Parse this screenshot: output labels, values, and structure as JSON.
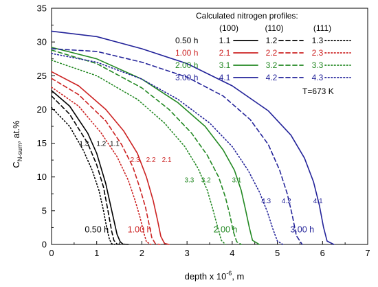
{
  "chart_data": {
    "type": "line",
    "xlabel": "depth x 10",
    "xlabel_sup": "-6",
    "xlabel_unit": ", m",
    "ylabel": "C",
    "ylabel_sub": "N-sum",
    "ylabel_unit": ", at.%",
    "xlim": [
      0,
      7
    ],
    "ylim": [
      0,
      35
    ],
    "xticks": [
      "0",
      "1",
      "2",
      "3",
      "4",
      "5",
      "6",
      "7"
    ],
    "yticks": [
      "0",
      "5",
      "10",
      "15",
      "20",
      "25",
      "30",
      "35"
    ],
    "grid": false,
    "legend": {
      "title": "Calculated nitrogen profiles:",
      "columns": [
        "(100)",
        "(110)",
        "(111)"
      ],
      "temperature": "T=673 K",
      "rows": [
        {
          "time": "0.50 h",
          "color": "#000000",
          "ids": [
            "1.1",
            "1.2",
            "1.3"
          ]
        },
        {
          "time": "1.00 h",
          "color": "#cc2222",
          "ids": [
            "2.1",
            "2.2",
            "2.3"
          ]
        },
        {
          "time": "2.00 h",
          "color": "#228822",
          "ids": [
            "3.1",
            "3.2",
            "3.3"
          ]
        },
        {
          "time": "3.00 h",
          "color": "#222299",
          "ids": [
            "4.1",
            "4.2",
            "4.3"
          ]
        }
      ]
    },
    "series": [
      {
        "name": "1.1",
        "orientation": "(100)",
        "style": "solid",
        "color": "#000000",
        "x": [
          0,
          0.4,
          0.8,
          1.0,
          1.2,
          1.35,
          1.45,
          1.52,
          1.58,
          1.7
        ],
        "y": [
          22.8,
          20.5,
          16.5,
          13.5,
          9.0,
          4.5,
          1.5,
          0.4,
          0.05,
          0
        ]
      },
      {
        "name": "1.2",
        "orientation": "(110)",
        "style": "dashed",
        "color": "#000000",
        "x": [
          0,
          0.4,
          0.8,
          1.0,
          1.15,
          1.25,
          1.33,
          1.38,
          1.45,
          1.55
        ],
        "y": [
          22.0,
          19.3,
          15.0,
          11.8,
          8.5,
          5.0,
          2.0,
          0.6,
          0.05,
          0
        ]
      },
      {
        "name": "1.3",
        "orientation": "(111)",
        "style": "dotted",
        "color": "#000000",
        "x": [
          0,
          0.4,
          0.7,
          0.9,
          1.05,
          1.15,
          1.22,
          1.28,
          1.33,
          1.4
        ],
        "y": [
          20.3,
          17.5,
          14.0,
          11.0,
          8.0,
          5.0,
          2.5,
          0.8,
          0.1,
          0
        ]
      },
      {
        "name": "2.1",
        "orientation": "(100)",
        "style": "solid",
        "color": "#cc2222",
        "x": [
          0,
          0.6,
          1.2,
          1.6,
          1.9,
          2.1,
          2.25,
          2.35,
          2.42,
          2.5,
          2.6
        ],
        "y": [
          25.6,
          23.5,
          20.0,
          16.8,
          13.5,
          10.0,
          6.5,
          3.5,
          1.2,
          0.15,
          0
        ]
      },
      {
        "name": "2.2",
        "orientation": "(110)",
        "style": "dashed",
        "color": "#cc2222",
        "x": [
          0,
          0.6,
          1.2,
          1.55,
          1.8,
          1.95,
          2.08,
          2.16,
          2.22,
          2.3,
          2.4
        ],
        "y": [
          24.6,
          22.2,
          18.3,
          14.8,
          11.5,
          8.5,
          5.5,
          3.0,
          1.0,
          0.1,
          0
        ]
      },
      {
        "name": "2.3",
        "orientation": "(111)",
        "style": "dotted",
        "color": "#cc2222",
        "x": [
          0,
          0.6,
          1.1,
          1.45,
          1.7,
          1.85,
          1.96,
          2.04,
          2.1,
          2.2
        ],
        "y": [
          23.3,
          20.5,
          16.5,
          13.0,
          9.5,
          6.5,
          4.0,
          1.8,
          0.4,
          0
        ]
      },
      {
        "name": "3.1",
        "orientation": "(100)",
        "style": "solid",
        "color": "#228822",
        "x": [
          0,
          1.0,
          2.0,
          2.8,
          3.4,
          3.8,
          4.05,
          4.2,
          4.3,
          4.38,
          4.45,
          4.6
        ],
        "y": [
          29.2,
          27.5,
          24.5,
          21.0,
          17.5,
          14.0,
          11.0,
          8.0,
          5.0,
          2.5,
          0.6,
          0
        ]
      },
      {
        "name": "3.2",
        "orientation": "(110)",
        "style": "dashed",
        "color": "#228822",
        "x": [
          0,
          1.0,
          2.0,
          2.6,
          3.1,
          3.45,
          3.7,
          3.85,
          3.95,
          4.02,
          4.1,
          4.2
        ],
        "y": [
          28.8,
          26.8,
          23.2,
          20.0,
          16.5,
          13.2,
          10.0,
          7.0,
          4.3,
          2.0,
          0.4,
          0
        ]
      },
      {
        "name": "3.3",
        "orientation": "(111)",
        "style": "dotted",
        "color": "#228822",
        "x": [
          0,
          1.0,
          1.9,
          2.5,
          2.95,
          3.25,
          3.45,
          3.58,
          3.68,
          3.76,
          3.85
        ],
        "y": [
          27.3,
          25.0,
          21.5,
          18.0,
          14.5,
          11.2,
          8.0,
          5.0,
          2.5,
          0.6,
          0
        ]
      },
      {
        "name": "4.1",
        "orientation": "(100)",
        "style": "solid",
        "color": "#222299",
        "x": [
          0,
          1.0,
          2.0,
          3.0,
          4.0,
          4.8,
          5.3,
          5.6,
          5.8,
          5.93,
          6.02,
          6.1,
          6.25
        ],
        "y": [
          31.6,
          30.8,
          29.0,
          26.8,
          23.5,
          19.8,
          16.2,
          12.8,
          9.3,
          5.8,
          2.6,
          0.5,
          0
        ]
      },
      {
        "name": "4.2",
        "orientation": "(110)",
        "style": "dashed",
        "color": "#222299",
        "x": [
          0,
          1.0,
          2.0,
          3.0,
          3.8,
          4.4,
          4.8,
          5.05,
          5.22,
          5.33,
          5.42,
          5.55
        ],
        "y": [
          29.0,
          28.6,
          27.0,
          24.8,
          22.0,
          18.5,
          14.8,
          11.0,
          7.5,
          4.3,
          1.3,
          0
        ]
      },
      {
        "name": "4.3",
        "orientation": "(111)",
        "style": "dotted",
        "color": "#222299",
        "x": [
          0,
          1.0,
          2.0,
          2.8,
          3.5,
          4.0,
          4.35,
          4.6,
          4.78,
          4.9,
          5.0,
          5.12
        ],
        "y": [
          28.3,
          27.0,
          24.5,
          21.5,
          18.0,
          14.5,
          11.0,
          7.8,
          4.8,
          2.3,
          0.5,
          0
        ]
      }
    ],
    "curve_labels": [
      {
        "text": "1.3",
        "x": 0.72,
        "y": 14.6,
        "color": "#000000"
      },
      {
        "text": "1.2",
        "x": 1.1,
        "y": 14.6,
        "color": "#000000"
      },
      {
        "text": "1.1",
        "x": 1.4,
        "y": 14.6,
        "color": "#000000"
      },
      {
        "text": "2.3",
        "x": 1.85,
        "y": 12.2,
        "color": "#cc2222"
      },
      {
        "text": "2.2",
        "x": 2.2,
        "y": 12.2,
        "color": "#cc2222"
      },
      {
        "text": "2.1",
        "x": 2.55,
        "y": 12.2,
        "color": "#cc2222"
      },
      {
        "text": "3.3",
        "x": 3.05,
        "y": 9.2,
        "color": "#228822"
      },
      {
        "text": "3.2",
        "x": 3.42,
        "y": 9.2,
        "color": "#228822"
      },
      {
        "text": "3.1",
        "x": 4.1,
        "y": 9.2,
        "color": "#228822"
      },
      {
        "text": "4.3",
        "x": 4.75,
        "y": 6.1,
        "color": "#222299"
      },
      {
        "text": "4.2",
        "x": 5.2,
        "y": 6.1,
        "color": "#222299"
      },
      {
        "text": "4.1",
        "x": 5.9,
        "y": 6.1,
        "color": "#222299"
      }
    ],
    "time_labels": [
      {
        "text": "0.50 h",
        "x": 1.0,
        "y": 1.8,
        "color": "#000000"
      },
      {
        "text": "1.00 h",
        "x": 1.95,
        "y": 1.8,
        "color": "#cc2222"
      },
      {
        "text": "2.00 h",
        "x": 3.85,
        "y": 1.8,
        "color": "#228822"
      },
      {
        "text": "3.00 h",
        "x": 5.55,
        "y": 1.8,
        "color": "#222299"
      }
    ]
  }
}
